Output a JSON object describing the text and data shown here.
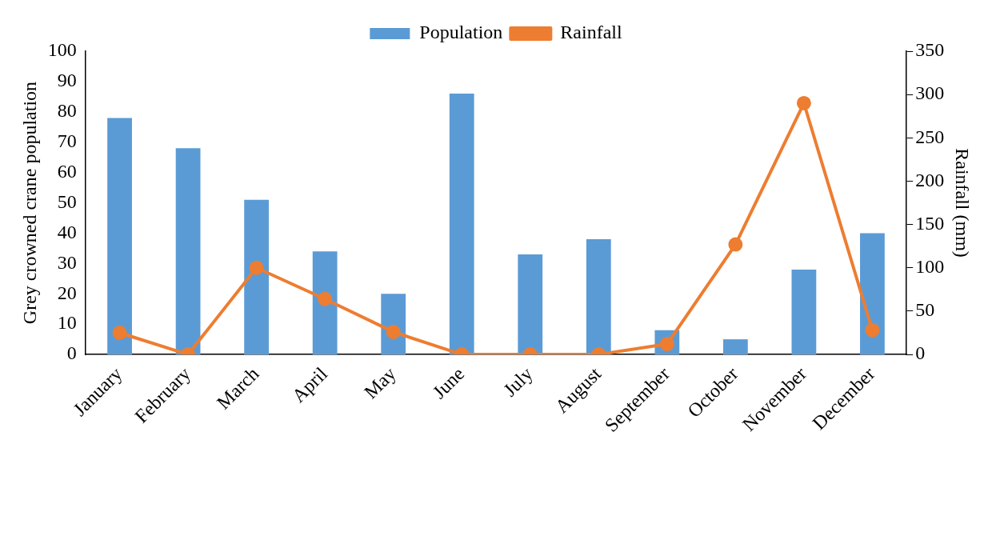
{
  "chart_data": {
    "type": "bar",
    "ylabel": "Grey crowned crane population",
    "y2label": "Rainfall (mm)",
    "categories": [
      "January",
      "February",
      "March",
      "April",
      "May",
      "June",
      "July",
      "August",
      "September",
      "October",
      "November",
      "December"
    ],
    "series": [
      {
        "name": "Population",
        "color": "#5b9bd5",
        "values": [
          78,
          68,
          51,
          34,
          20,
          86,
          33,
          38,
          8,
          5,
          28,
          40
        ]
      },
      {
        "name": "Rainfall",
        "type": "line",
        "axis": "y2",
        "color": "#ed7d31",
        "values": [
          25,
          0,
          100,
          64,
          26,
          0,
          0,
          0,
          12,
          127,
          290,
          28
        ]
      }
    ],
    "ylim": [
      0,
      100
    ],
    "yticks": [
      0,
      10,
      20,
      30,
      40,
      50,
      60,
      70,
      80,
      90,
      100
    ],
    "y2lim": [
      0,
      350
    ],
    "y2ticks": [
      0,
      50,
      100,
      150,
      200,
      250,
      300,
      350
    ],
    "legend": "top",
    "marker": "circle"
  }
}
